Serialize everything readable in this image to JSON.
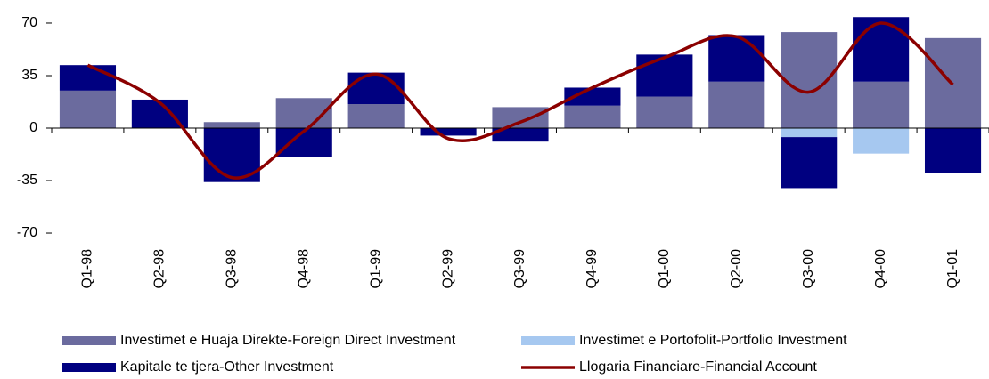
{
  "chart_data": {
    "type": "bar",
    "categories": [
      "Q1-98",
      "Q2-98",
      "Q3-98",
      "Q4-98",
      "Q1-99",
      "Q2-99",
      "Q3-99",
      "Q4-99",
      "Q1-00",
      "Q2-00",
      "Q3-00",
      "Q4-00",
      "Q1-01"
    ],
    "series": [
      {
        "name": "Investimet e Huaja Direkte-Foreign Direct Investment",
        "color": "#6b6b9e",
        "type": "bar",
        "values": [
          25,
          0,
          4,
          20,
          16,
          0,
          14,
          15,
          21,
          31,
          64,
          31,
          60
        ]
      },
      {
        "name": "Investimet e Portofolit-Portfolio Investment",
        "color": "#a6c8f0",
        "type": "bar",
        "values": [
          0,
          0,
          0,
          0,
          0,
          0,
          0,
          0,
          0,
          0,
          -6,
          -17,
          0
        ]
      },
      {
        "name": "Kapitale te tjera-Other Investment",
        "color": "#000080",
        "type": "bar",
        "values": [
          17,
          19,
          -36,
          -19,
          21,
          -5,
          -9,
          12,
          28,
          31,
          -34,
          43,
          -30
        ]
      },
      {
        "name": "Llogaria Financiare-Financial Account",
        "color": "#8b0000",
        "type": "line",
        "values": [
          42,
          17,
          -33,
          -2,
          36,
          -7,
          4,
          27,
          47,
          61,
          24,
          70,
          29
        ]
      }
    ],
    "ylim": [
      -70,
      77
    ],
    "yticks": [
      -70,
      -35,
      0,
      35,
      70
    ]
  }
}
